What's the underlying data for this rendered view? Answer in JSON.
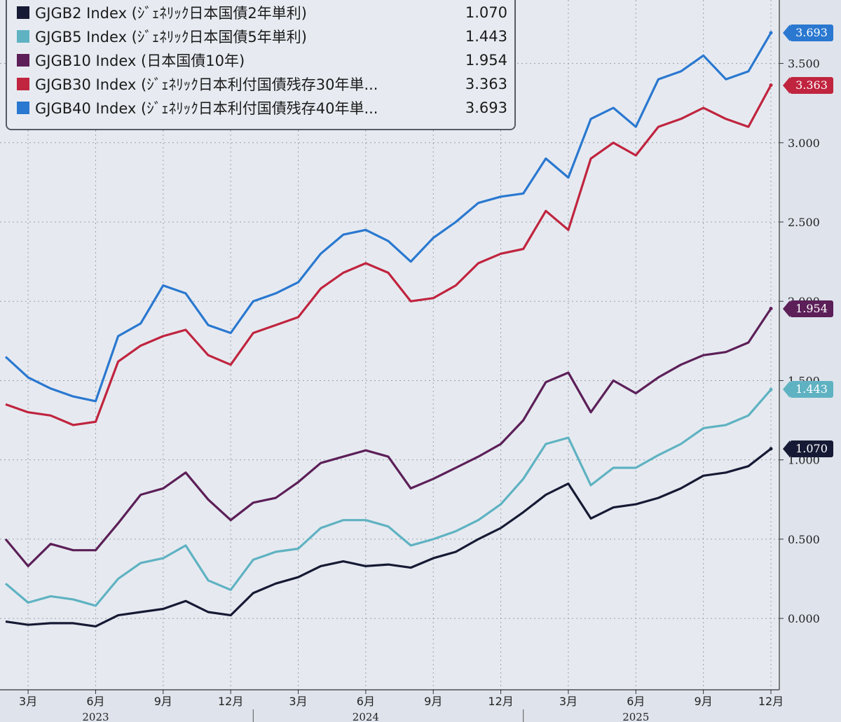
{
  "chart_data": {
    "type": "line",
    "x_unit": "month",
    "xlim": [
      "2023-02",
      "2025-12"
    ],
    "ylim": [
      -0.45,
      3.9
    ],
    "grid": true,
    "legend_position": "top-left",
    "y_ticks": [
      {
        "value": 0.0,
        "label": "0.000"
      },
      {
        "value": 0.5,
        "label": "0.500"
      },
      {
        "value": 1.0,
        "label": "1.000"
      },
      {
        "value": 1.5,
        "label": "1.500"
      },
      {
        "value": 2.0,
        "label": "2.000"
      },
      {
        "value": 2.5,
        "label": "2.500"
      },
      {
        "value": 3.0,
        "label": "3.000"
      },
      {
        "value": 3.5,
        "label": "3.500"
      }
    ],
    "x_ticks": [
      {
        "value": "2023-03",
        "label": "3月"
      },
      {
        "value": "2023-06",
        "label": "6月"
      },
      {
        "value": "2023-09",
        "label": "9月"
      },
      {
        "value": "2023-12",
        "label": "12月"
      },
      {
        "value": "2024-03",
        "label": "3月"
      },
      {
        "value": "2024-06",
        "label": "6月"
      },
      {
        "value": "2024-09",
        "label": "9月"
      },
      {
        "value": "2024-12",
        "label": "12月"
      },
      {
        "value": "2025-03",
        "label": "3月"
      },
      {
        "value": "2025-06",
        "label": "6月"
      },
      {
        "value": "2025-09",
        "label": "9月"
      },
      {
        "value": "2025-12",
        "label": "12月"
      }
    ],
    "year_labels": [
      {
        "value": "2023-06",
        "label": "2023"
      },
      {
        "value": "2024-06",
        "label": "2024"
      },
      {
        "value": "2025-06",
        "label": "2025"
      }
    ],
    "x": [
      "2023-02-01",
      "2023-03-01",
      "2023-04-01",
      "2023-05-01",
      "2023-06-01",
      "2023-07-01",
      "2023-08-01",
      "2023-09-01",
      "2023-10-01",
      "2023-11-01",
      "2023-12-01",
      "2024-01-01",
      "2024-02-01",
      "2024-03-01",
      "2024-04-01",
      "2024-05-01",
      "2024-06-01",
      "2024-07-01",
      "2024-08-01",
      "2024-09-01",
      "2024-10-01",
      "2024-11-01",
      "2024-12-01",
      "2025-01-01",
      "2025-02-01",
      "2025-03-01",
      "2025-04-01",
      "2025-05-01",
      "2025-06-01",
      "2025-07-01",
      "2025-08-01",
      "2025-09-01",
      "2025-10-01",
      "2025-11-01",
      "2025-12-01"
    ],
    "series": [
      {
        "name": "GJGB2 Index (ｼﾞｪﾈﾘｯｸ日本国債2年単利)",
        "last": "1.070",
        "color": "#161a34",
        "values": [
          -0.02,
          -0.04,
          -0.03,
          -0.03,
          -0.05,
          0.02,
          0.04,
          0.06,
          0.11,
          0.04,
          0.02,
          0.16,
          0.22,
          0.26,
          0.33,
          0.36,
          0.33,
          0.34,
          0.32,
          0.38,
          0.42,
          0.5,
          0.57,
          0.67,
          0.78,
          0.85,
          0.63,
          0.7,
          0.72,
          0.76,
          0.82,
          0.9,
          0.92,
          0.96,
          1.07
        ]
      },
      {
        "name": "GJGB5 Index (ｼﾞｪﾈﾘｯｸ日本国債5年単利)",
        "last": "1.443",
        "color": "#5fb2c2",
        "values": [
          0.22,
          0.1,
          0.14,
          0.12,
          0.08,
          0.25,
          0.35,
          0.38,
          0.46,
          0.24,
          0.18,
          0.37,
          0.42,
          0.44,
          0.57,
          0.62,
          0.62,
          0.58,
          0.46,
          0.5,
          0.55,
          0.62,
          0.72,
          0.88,
          1.1,
          1.14,
          0.84,
          0.95,
          0.95,
          1.03,
          1.1,
          1.2,
          1.22,
          1.28,
          1.443
        ]
      },
      {
        "name": "GJGB10 Index (日本国債10年)",
        "last": "1.954",
        "color": "#5c1f58",
        "values": [
          0.5,
          0.33,
          0.47,
          0.43,
          0.43,
          0.6,
          0.78,
          0.82,
          0.92,
          0.75,
          0.62,
          0.73,
          0.76,
          0.86,
          0.98,
          1.02,
          1.06,
          1.02,
          0.82,
          0.88,
          0.95,
          1.02,
          1.1,
          1.25,
          1.49,
          1.55,
          1.3,
          1.5,
          1.42,
          1.52,
          1.6,
          1.66,
          1.68,
          1.74,
          1.954
        ]
      },
      {
        "name": "GJGB30 Index (ｼﾞｪﾈﾘｯｸ日本利付国債残存30年単...",
        "last": "3.363",
        "color": "#c0243f",
        "values": [
          1.35,
          1.3,
          1.28,
          1.22,
          1.24,
          1.62,
          1.72,
          1.78,
          1.82,
          1.66,
          1.6,
          1.8,
          1.85,
          1.9,
          2.08,
          2.18,
          2.24,
          2.18,
          2.0,
          2.02,
          2.1,
          2.24,
          2.3,
          2.33,
          2.57,
          2.45,
          2.9,
          3.0,
          2.92,
          3.1,
          3.15,
          3.22,
          3.15,
          3.1,
          3.363
        ]
      },
      {
        "name": "GJGB40 Index (ｼﾞｪﾈﾘｯｸ日本利付国債残存40年単...",
        "last": "3.693",
        "color": "#2a78d0",
        "values": [
          1.65,
          1.52,
          1.45,
          1.4,
          1.37,
          1.78,
          1.86,
          2.1,
          2.05,
          1.85,
          1.8,
          2.0,
          2.05,
          2.12,
          2.3,
          2.42,
          2.45,
          2.38,
          2.25,
          2.4,
          2.5,
          2.62,
          2.66,
          2.68,
          2.9,
          2.78,
          3.15,
          3.22,
          3.1,
          3.4,
          3.45,
          3.55,
          3.4,
          3.45,
          3.693
        ]
      }
    ]
  }
}
